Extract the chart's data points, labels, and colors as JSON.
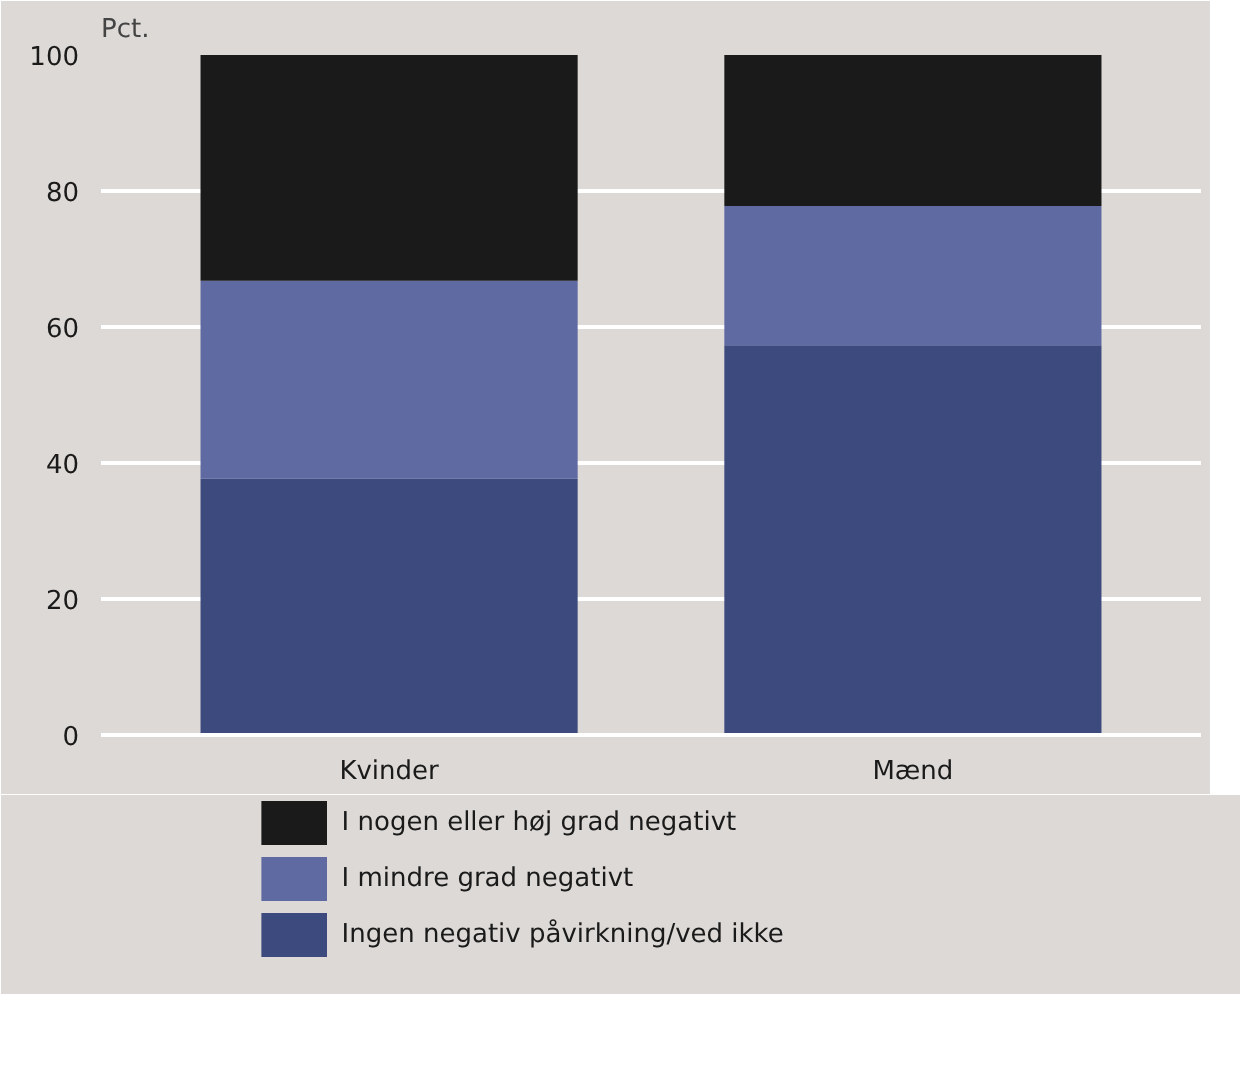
{
  "chart_data": {
    "type": "bar",
    "stacked": true,
    "ylabel": "Pct.",
    "categories": [
      "Kvinder",
      "Mænd"
    ],
    "series": [
      {
        "name": "Ingen negativ påvirkning/ved ikke",
        "color": "#3d4a7e",
        "values": [
          37.7,
          57.3
        ]
      },
      {
        "name": "I mindre grad negativt",
        "color": "#5f6aa3",
        "values": [
          29.1,
          20.5
        ]
      },
      {
        "name": "I nogen eller høj grad negativt",
        "color": "#1a1a1a",
        "values": [
          33.2,
          22.2
        ]
      }
    ],
    "ylim": [
      0,
      100
    ],
    "yticks": [
      0,
      20,
      40,
      60,
      80,
      100
    ],
    "grid": "y",
    "legend": "bottom"
  }
}
